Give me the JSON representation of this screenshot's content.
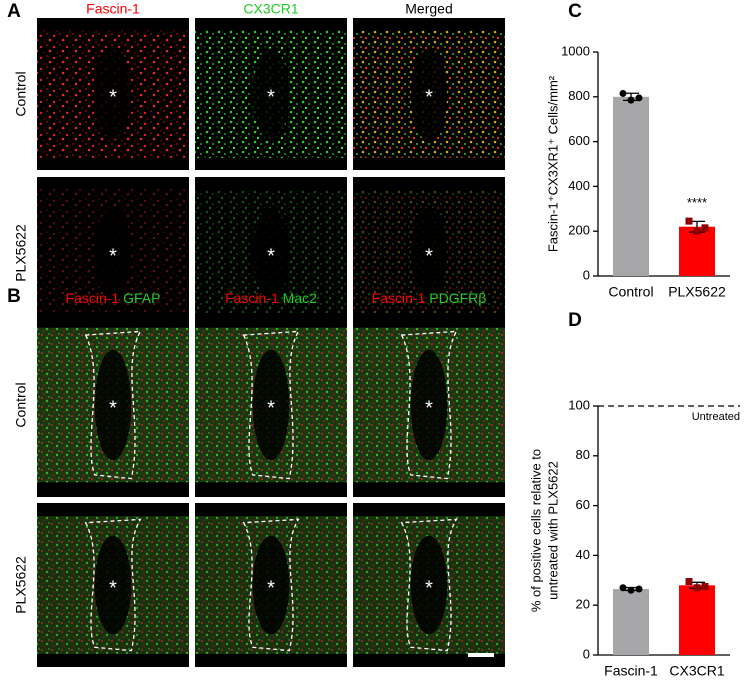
{
  "figure": {
    "panel_letters": [
      "A",
      "B",
      "C",
      "D"
    ],
    "asterisk": "*",
    "a": {
      "columns": [
        "Fascin-1",
        "CX3CR1",
        "Merged"
      ],
      "rows": [
        "Control",
        "PLX5622"
      ]
    },
    "b": {
      "columns": [
        [
          "Fascin-1",
          "/",
          "GFAP"
        ],
        [
          "Fascin-1",
          "/",
          "Mac2"
        ],
        [
          "Fascin-1",
          "/",
          "PDGFRβ"
        ]
      ],
      "rows": [
        "Control",
        "PLX5622"
      ]
    }
  },
  "chart_data": [
    {
      "type": "bar",
      "y_label": [
        "Fascin-1⁺CX3XR1⁺ Cells/mm²"
      ],
      "categories": [
        "Control",
        "PLX5622"
      ],
      "values": [
        800,
        220
      ],
      "errors": [
        16,
        24
      ],
      "points": [
        [
          815,
          785,
          795
        ],
        [
          245,
          200,
          215
        ]
      ],
      "colors": [
        "#a7a7a9",
        "#ff0000"
      ],
      "ylim": [
        0,
        1000
      ],
      "yticks": [
        0,
        200,
        400,
        600,
        800,
        1000
      ],
      "annotation": "****"
    },
    {
      "type": "bar",
      "y_label": [
        "% of positive cells relative to",
        "untreated with PLX5622"
      ],
      "categories": [
        "Fascin-1",
        "CX3CR1"
      ],
      "values": [
        26.5,
        28
      ],
      "errors": [
        0.6,
        1.2
      ],
      "points": [
        [
          27,
          26,
          26.5
        ],
        [
          29.5,
          27,
          27.5
        ]
      ],
      "colors": [
        "#a7a7a9",
        "#ff0000"
      ],
      "ylim": [
        0,
        100
      ],
      "yticks": [
        0,
        20,
        40,
        60,
        80,
        100
      ],
      "reference_line": {
        "value": 100,
        "label": "Untreated"
      }
    }
  ]
}
